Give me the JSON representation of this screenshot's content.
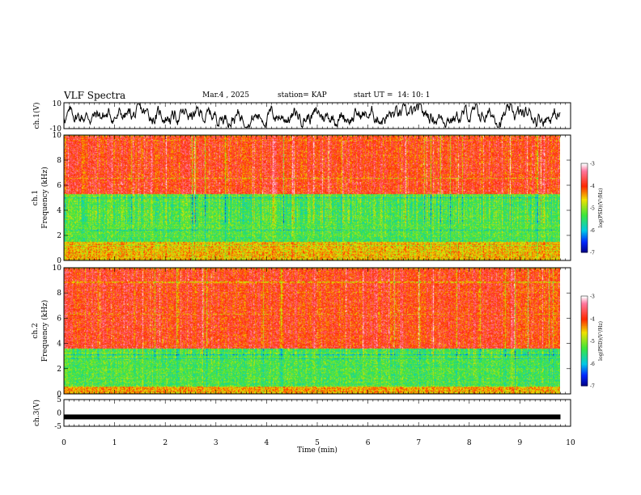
{
  "header": {
    "title": "VLF Spectra",
    "date": "Mar.4 , 2025",
    "station": "station= KAP",
    "start": "start UT =  14: 10: 1"
  },
  "chart_data": [
    {
      "type": "line",
      "ylabel": "ch.1(V)",
      "ylim": [
        -10,
        10
      ],
      "yticks": [
        "10",
        "-10"
      ],
      "x_range_min": [
        0,
        9.8
      ],
      "description_series": "noisy waveform, amplitude ~ -8..+8 V"
    },
    {
      "type": "heatmap",
      "ylabel": "ch.1\nFrequency (kHz)",
      "ylabel_lines": [
        "ch.1",
        "Frequency (kHz)"
      ],
      "xlim": [
        0,
        10
      ],
      "ylim": [
        0,
        10
      ],
      "yticks": [
        "0",
        "2",
        "4",
        "6",
        "8",
        "10"
      ],
      "colorbar": {
        "label": "log(PSD)(V²/Hz)",
        "ticks": [
          "-3",
          "-4",
          "-5",
          "-6",
          "-7"
        ],
        "range": [
          -7,
          -3
        ]
      },
      "bands": [
        {
          "from": 0,
          "to": 1.5,
          "level": -4.5
        },
        {
          "from": 1.5,
          "to": 5.3,
          "level": -5.3
        },
        {
          "from": 5.3,
          "to": 10,
          "level": -3.9
        }
      ]
    },
    {
      "type": "heatmap",
      "ylabel_lines": [
        "ch.2",
        "Frequency (kHz)"
      ],
      "xlim": [
        0,
        10
      ],
      "ylim": [
        0,
        10
      ],
      "yticks": [
        "0",
        "2",
        "4",
        "6",
        "8",
        "10"
      ],
      "colorbar": {
        "label": "log(PSD)(V²/Hz)",
        "ticks": [
          "-3",
          "-4",
          "-5",
          "-6",
          "-7"
        ],
        "range": [
          -7,
          -3
        ]
      },
      "bands": [
        {
          "from": 0,
          "to": 0.6,
          "level": -4.4
        },
        {
          "from": 0.6,
          "to": 3.6,
          "level": -5.3
        },
        {
          "from": 3.6,
          "to": 10,
          "level": -3.9
        }
      ]
    },
    {
      "type": "line",
      "ylabel": "ch.3(V)",
      "ylim": [
        -5,
        5
      ],
      "yticks": [
        "5",
        "0",
        "-5"
      ],
      "level": -1.5
    }
  ],
  "xaxis": {
    "label": "Time (min)",
    "ticks": [
      "0",
      "1",
      "2",
      "3",
      "4",
      "5",
      "6",
      "7",
      "8",
      "9",
      "10"
    ],
    "data_end": 9.8
  },
  "colors": {
    "red": "#ff2000",
    "yellow": "#f0e000",
    "green": "#40e040",
    "cyan": "#00c8e0",
    "blue": "#0030ff",
    "navy": "#000080"
  }
}
